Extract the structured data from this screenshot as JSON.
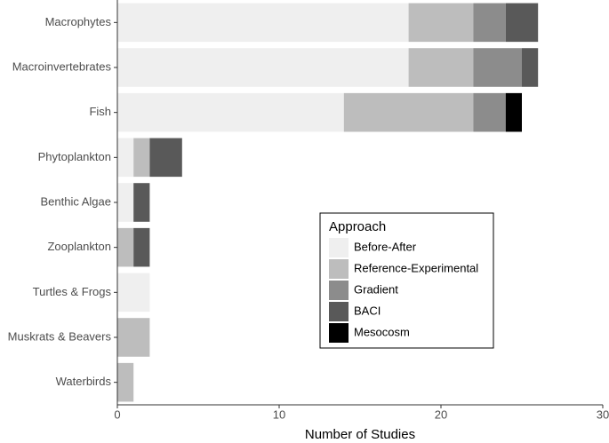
{
  "chart_data": {
    "type": "stacked-bar-horizontal",
    "x_label": "Number of Studies",
    "categories": [
      "Macrophytes",
      "Macroinvertebrates",
      "Fish",
      "Phytoplankton",
      "Benthic Algae",
      "Zooplankton",
      "Turtles & Frogs",
      "Muskrats & Beavers",
      "Waterbirds"
    ],
    "legend_title": "Approach",
    "series": [
      {
        "name": "Before-After",
        "color": "#efefef",
        "values": [
          18,
          18,
          14,
          1,
          1,
          0,
          2,
          0,
          0
        ]
      },
      {
        "name": "Reference-Experimental",
        "color": "#bdbdbd",
        "values": [
          4,
          4,
          8,
          1,
          0,
          1,
          0,
          2,
          1
        ]
      },
      {
        "name": "Gradient",
        "color": "#8c8c8c",
        "values": [
          2,
          3,
          2,
          0,
          0,
          0,
          0,
          0,
          0
        ]
      },
      {
        "name": "BACI",
        "color": "#595959",
        "values": [
          2,
          1,
          0,
          2,
          1,
          1,
          0,
          0,
          0
        ]
      },
      {
        "name": "Mesocosm",
        "color": "#000000",
        "values": [
          0,
          0,
          1,
          0,
          0,
          0,
          0,
          0,
          0
        ]
      }
    ],
    "xlim": [
      0,
      30
    ],
    "xticks": [
      0,
      10,
      20,
      30
    ]
  }
}
